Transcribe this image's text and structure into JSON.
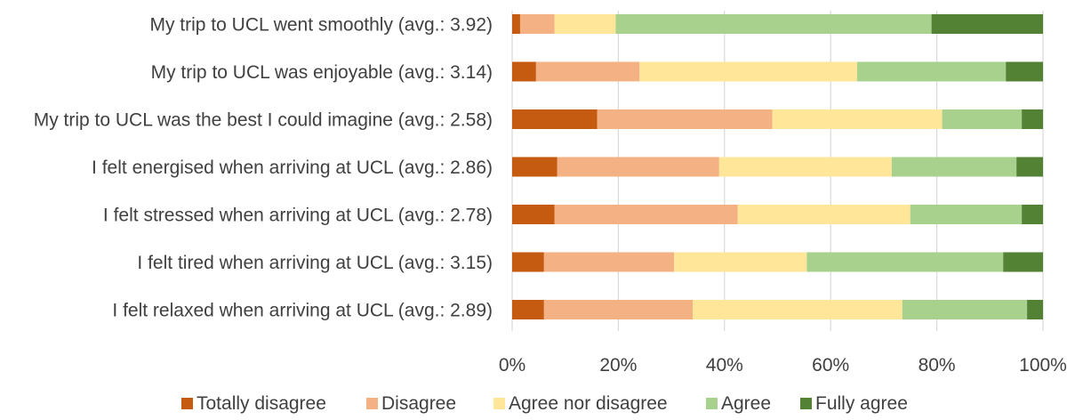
{
  "chart_data": {
    "type": "bar",
    "orientation": "horizontal",
    "stacked": true,
    "percent": true,
    "categories": [
      "My trip to UCL went smoothly (avg.: 3.92)",
      "My trip to UCL was enjoyable (avg.: 3.14)",
      "My trip to UCL was the best I could imagine (avg.: 2.58)",
      "I felt energised when arriving at UCL (avg.: 2.86)",
      "I felt stressed when arriving at UCL (avg.: 2.78)",
      "I felt tired when arriving at UCL (avg.: 3.15)",
      "I felt relaxed when arriving at UCL (avg.: 2.89)"
    ],
    "series": [
      {
        "name": "Totally disagree",
        "color": "#C55A11",
        "values": [
          1.5,
          4.5,
          16.0,
          8.5,
          8.0,
          6.0,
          6.0
        ]
      },
      {
        "name": "Disagree",
        "color": "#F4B183",
        "values": [
          6.5,
          19.5,
          33.0,
          30.5,
          34.5,
          24.5,
          28.0
        ]
      },
      {
        "name": "Agree nor disagree",
        "color": "#FFE699",
        "values": [
          11.5,
          41.0,
          32.0,
          32.5,
          32.5,
          25.0,
          39.5
        ]
      },
      {
        "name": "Agree",
        "color": "#A9D18E",
        "values": [
          59.5,
          28.0,
          15.0,
          23.5,
          21.0,
          37.0,
          23.5
        ]
      },
      {
        "name": "Fully agree",
        "color": "#548235",
        "values": [
          21.0,
          7.0,
          4.0,
          5.0,
          4.0,
          7.5,
          3.0
        ]
      }
    ],
    "xticks": [
      "0%",
      "20%",
      "40%",
      "60%",
      "80%",
      "100%"
    ],
    "xlim": [
      0,
      100
    ],
    "grid": true,
    "legend_position": "bottom",
    "title": "",
    "xlabel": "",
    "ylabel": ""
  }
}
